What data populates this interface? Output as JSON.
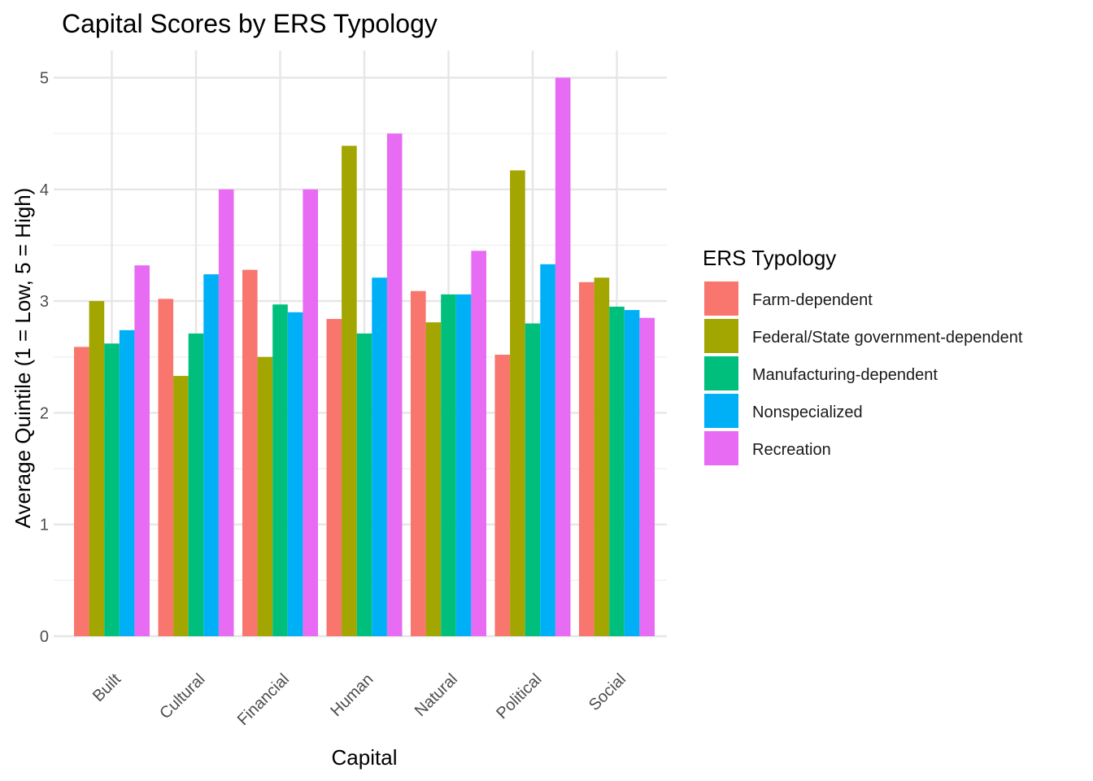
{
  "chart_data": {
    "type": "bar",
    "title": "Capital Scores by ERS Typology",
    "xlabel": "Capital",
    "ylabel": "Average Quintile (1 = Low, 5 = High)",
    "ylim": [
      0,
      5.2
    ],
    "yticks": [
      0,
      1,
      2,
      3,
      4,
      5
    ],
    "grid": true,
    "legend_title": "ERS Typology",
    "legend_position": "right",
    "categories": [
      "Built",
      "Cultural",
      "Financial",
      "Human",
      "Natural",
      "Political",
      "Social"
    ],
    "series": [
      {
        "name": "Farm-dependent",
        "color": "#F8766D",
        "values": [
          2.59,
          3.02,
          3.28,
          2.84,
          3.09,
          2.52,
          3.17
        ]
      },
      {
        "name": "Federal/State government-dependent",
        "color": "#A3A500",
        "values": [
          3.0,
          2.33,
          2.5,
          4.39,
          2.81,
          4.17,
          3.21
        ]
      },
      {
        "name": "Manufacturing-dependent",
        "color": "#00BF7D",
        "values": [
          2.62,
          2.71,
          2.97,
          2.71,
          3.06,
          2.8,
          2.95
        ]
      },
      {
        "name": "Nonspecialized",
        "color": "#00B0F6",
        "values": [
          2.74,
          3.24,
          2.9,
          3.21,
          3.06,
          3.33,
          2.92
        ]
      },
      {
        "name": "Recreation",
        "color": "#E76BF3",
        "values": [
          3.32,
          4.0,
          4.0,
          4.5,
          3.45,
          5.0,
          2.85
        ]
      }
    ]
  }
}
